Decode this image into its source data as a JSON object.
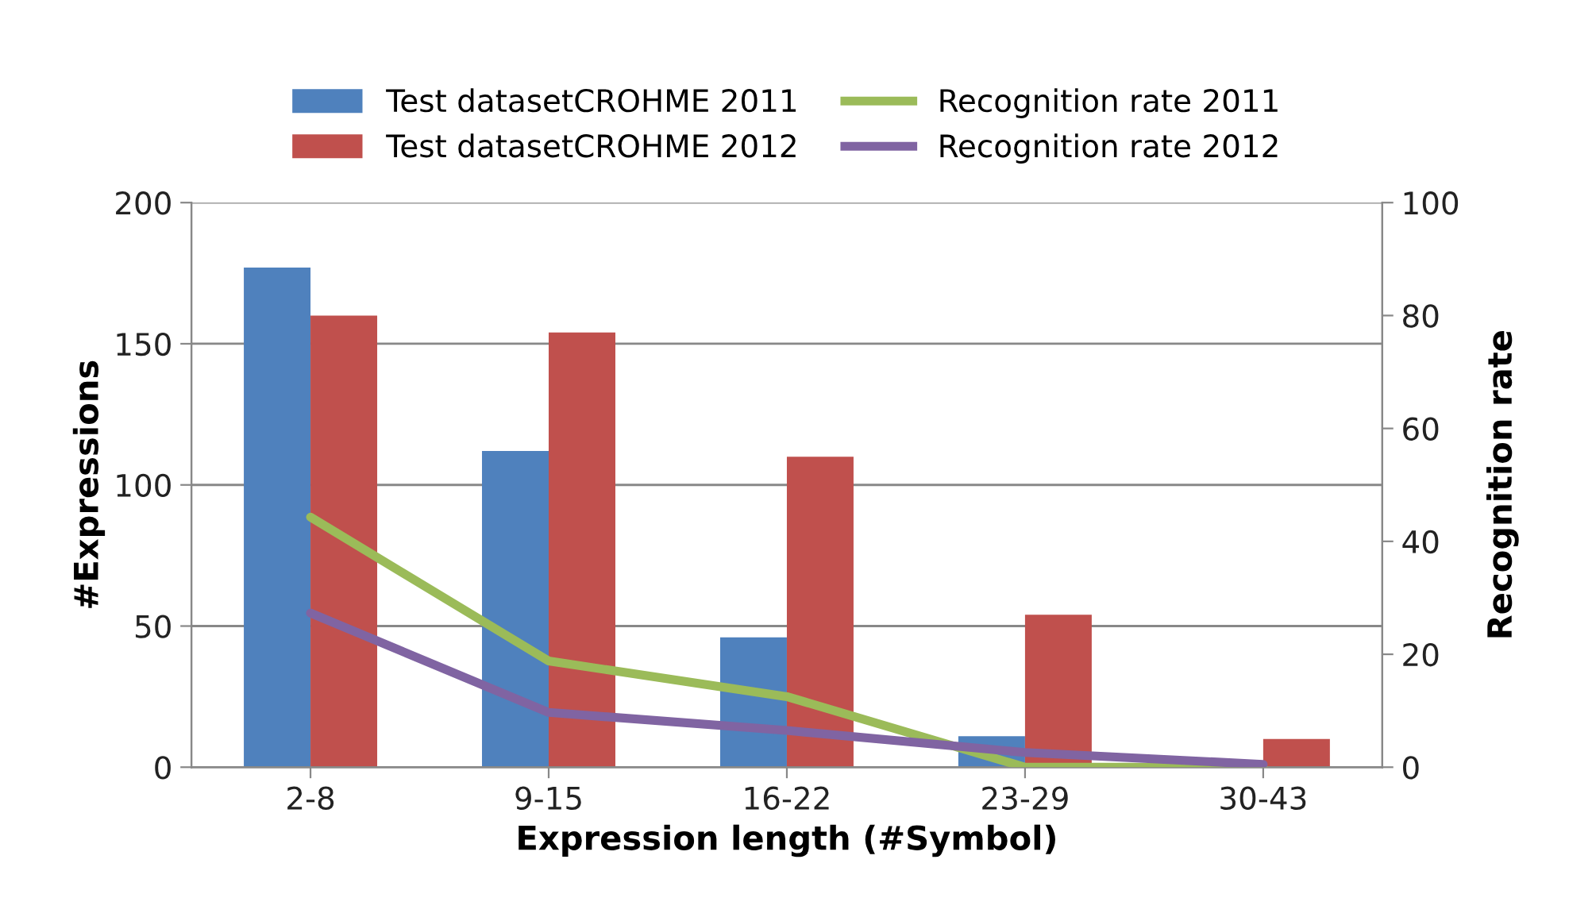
{
  "chart_data": {
    "type": "bar",
    "xlabel": "Expression length (#Symbol)",
    "ylabel": "#Expressions",
    "y2label": "Recognition rate",
    "categories": [
      "2-8",
      "9-15",
      "16-22",
      "23-29",
      "30-43"
    ],
    "series": [
      {
        "name": "Test datasetCROHME 2011",
        "color": "#4f81bd",
        "values": [
          177,
          112,
          46,
          11,
          0
        ]
      },
      {
        "name": "Test datasetCROHME 2012",
        "color": "#c0504d",
        "values": [
          160,
          154,
          110,
          54,
          10
        ]
      },
      {
        "name": "Recognition rate 2011",
        "type": "line",
        "axis": "y2",
        "color": "#9bbb59",
        "values": [
          44.3,
          18.8,
          12.5,
          0,
          0
        ]
      },
      {
        "name": "Recognition rate 2012",
        "type": "line",
        "axis": "y2",
        "color": "#8064a2",
        "values": [
          27.3,
          9.7,
          6.5,
          2.6,
          0.5
        ]
      }
    ],
    "ylim": [
      0,
      200
    ],
    "yticks": [
      0,
      50,
      100,
      150,
      200
    ],
    "y2lim": [
      0,
      100
    ],
    "y2ticks": [
      0,
      20,
      40,
      60,
      80,
      100
    ],
    "grid": "y",
    "legend": "top",
    "line_style": "solid"
  }
}
